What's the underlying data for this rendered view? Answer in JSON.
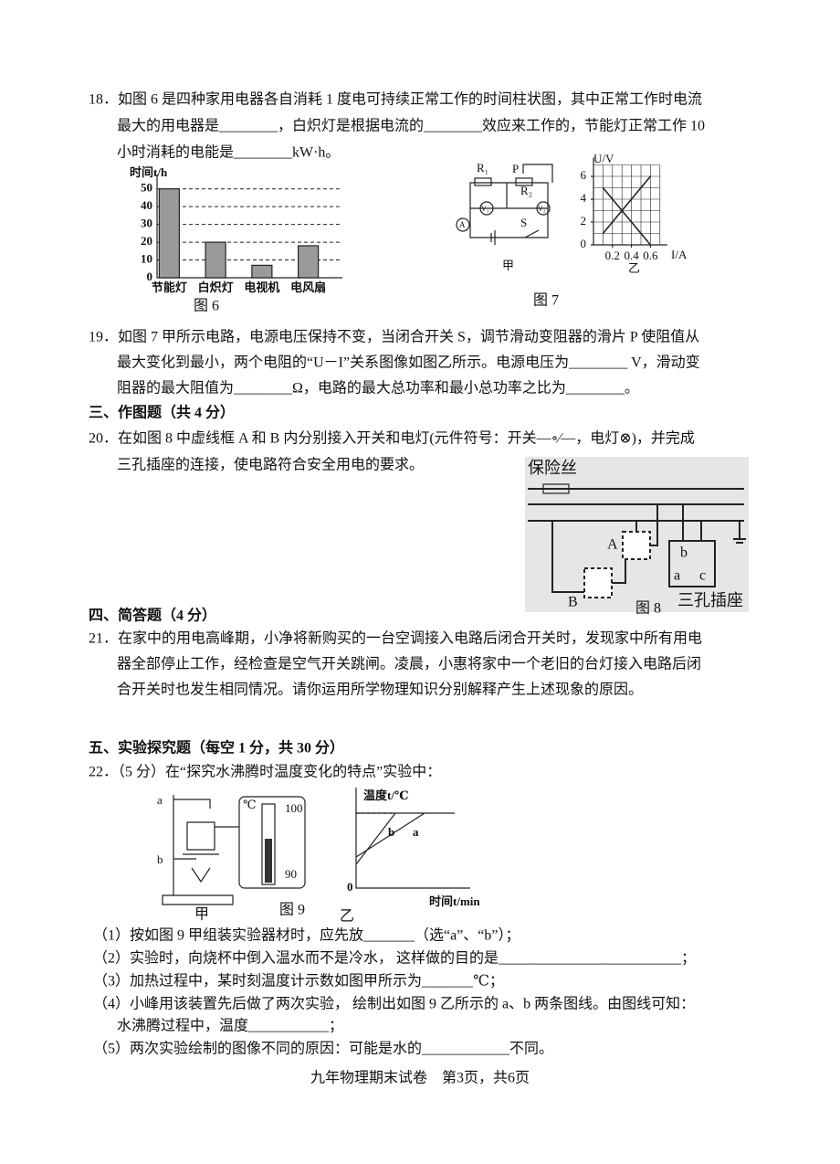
{
  "q18": [
    "18．如图 6 是四种家用电器各自消耗 1 度电可持续正常工作的时间柱状图，其中正常工作时电流",
    "最大的用电器是________，白炽灯是根据电流的________效应来工作的，节能灯正常工作 10",
    "小时消耗的电能是________kW·h。"
  ],
  "fig6": {
    "type": "bar",
    "ylabel": "时间t/h",
    "categories": [
      "节能灯",
      "白炽灯",
      "电视机",
      "电风扇"
    ],
    "values": [
      50,
      20,
      7,
      18
    ],
    "color": "#9a9a9a",
    "ylim": [
      0,
      55
    ],
    "yticks": [
      0,
      10,
      20,
      30,
      40,
      50
    ],
    "grid": true,
    "caption": "图 6"
  },
  "fig7": {
    "circuit": {
      "r1": "R₁",
      "p": "P",
      "r2": "R₂",
      "v1": "V₁",
      "v2": "V₂",
      "a": "A",
      "s": "S",
      "label": "甲"
    },
    "graph": {
      "type": "line",
      "ylabel": "U/V",
      "xlabel": "I/A",
      "xlim": [
        0,
        0.7
      ],
      "ylim": [
        0,
        7
      ],
      "xticks": [
        0.2,
        0.4,
        0.6
      ],
      "yticks": [
        0,
        2,
        4,
        6
      ],
      "series": [
        {
          "x": [
            0.1,
            0.6
          ],
          "values": [
            1,
            6
          ]
        },
        {
          "x": [
            0.1,
            0.6
          ],
          "values": [
            5,
            0
          ]
        }
      ],
      "label": "乙"
    },
    "caption": "图 7"
  },
  "q19": [
    "19．如图 7 甲所示电路，电源电压保持不变，当闭合开关 S，调节滑动变阻器的滑片 P 使阻值从",
    "最大变化到最小，两个电阻的“U－I”关系图像如图乙所示。电源电压为________ V，滑动变",
    "阻器的最大阻值为________Ω，电路的最大总功率和最小总功率之比为________。"
  ],
  "section3": "三、作图题（共 4 分）",
  "q20": [
    "20．在如图 8 中虚线框 A 和 B 内分别接入开关和电灯(元件符号：开关—∘⁄—，电灯⊗)，并完成",
    "三孔插座的连接，使电路符合安全用电的要求。"
  ],
  "fig8": {
    "fuse": "保险丝",
    "a": "A",
    "b": "B",
    "socket": "三孔插座",
    "pin_b": "b",
    "pin_a": "a",
    "pin_c": "c",
    "caption": "图 8"
  },
  "section4": "四、简答题（4 分）",
  "q21": [
    "21．在家中的用电高峰期，小净将新购买的一台空调接入电路后闭合开关时，发现家中所有用电",
    "器全部停止工作，经检查是空气开关跳闸。凌晨，小惠将家中一个老旧的台灯接入电路后闭",
    "合开关时也发生相同情况。请你运用所学物理知识分别解释产生上述现象的原因。"
  ],
  "section5": "五、实验探究题（每空 1 分，共 30 分）",
  "q22": {
    "stem": "22．（5 分）在“探究水沸腾时温度变化的特点”实验中：",
    "fig9": {
      "a": "a",
      "b": "b",
      "unit": "℃",
      "t100": "100",
      "t90": "90",
      "left": "甲",
      "caption": "图 9",
      "ylabel": "温度t/℃",
      "xlabel": "时间t/min",
      "origin": "0",
      "line_a": "a",
      "line_b": "b",
      "right": "乙"
    },
    "parts": [
      "（1）按如图 9 甲组装实验器材时，应先放_______（选“a”、“b”）；",
      "（2）实验时，向烧杯中倒入温水而不是冷水， 这样做的目的是_________________________；",
      "（3）加热过程中，某时刻温度计示数如图甲所示为_______℃；",
      "（4）小峰用该装置先后做了两次实验， 绘制出如图 9 乙所示的 a、b 两条图线。由图线可知：",
      "水沸腾过程中，温度___________；",
      "（5）两次实验绘制的图像不同的原因：可能是水的____________不同。"
    ]
  },
  "footer": "九年物理期末试卷　第3页，共6页"
}
